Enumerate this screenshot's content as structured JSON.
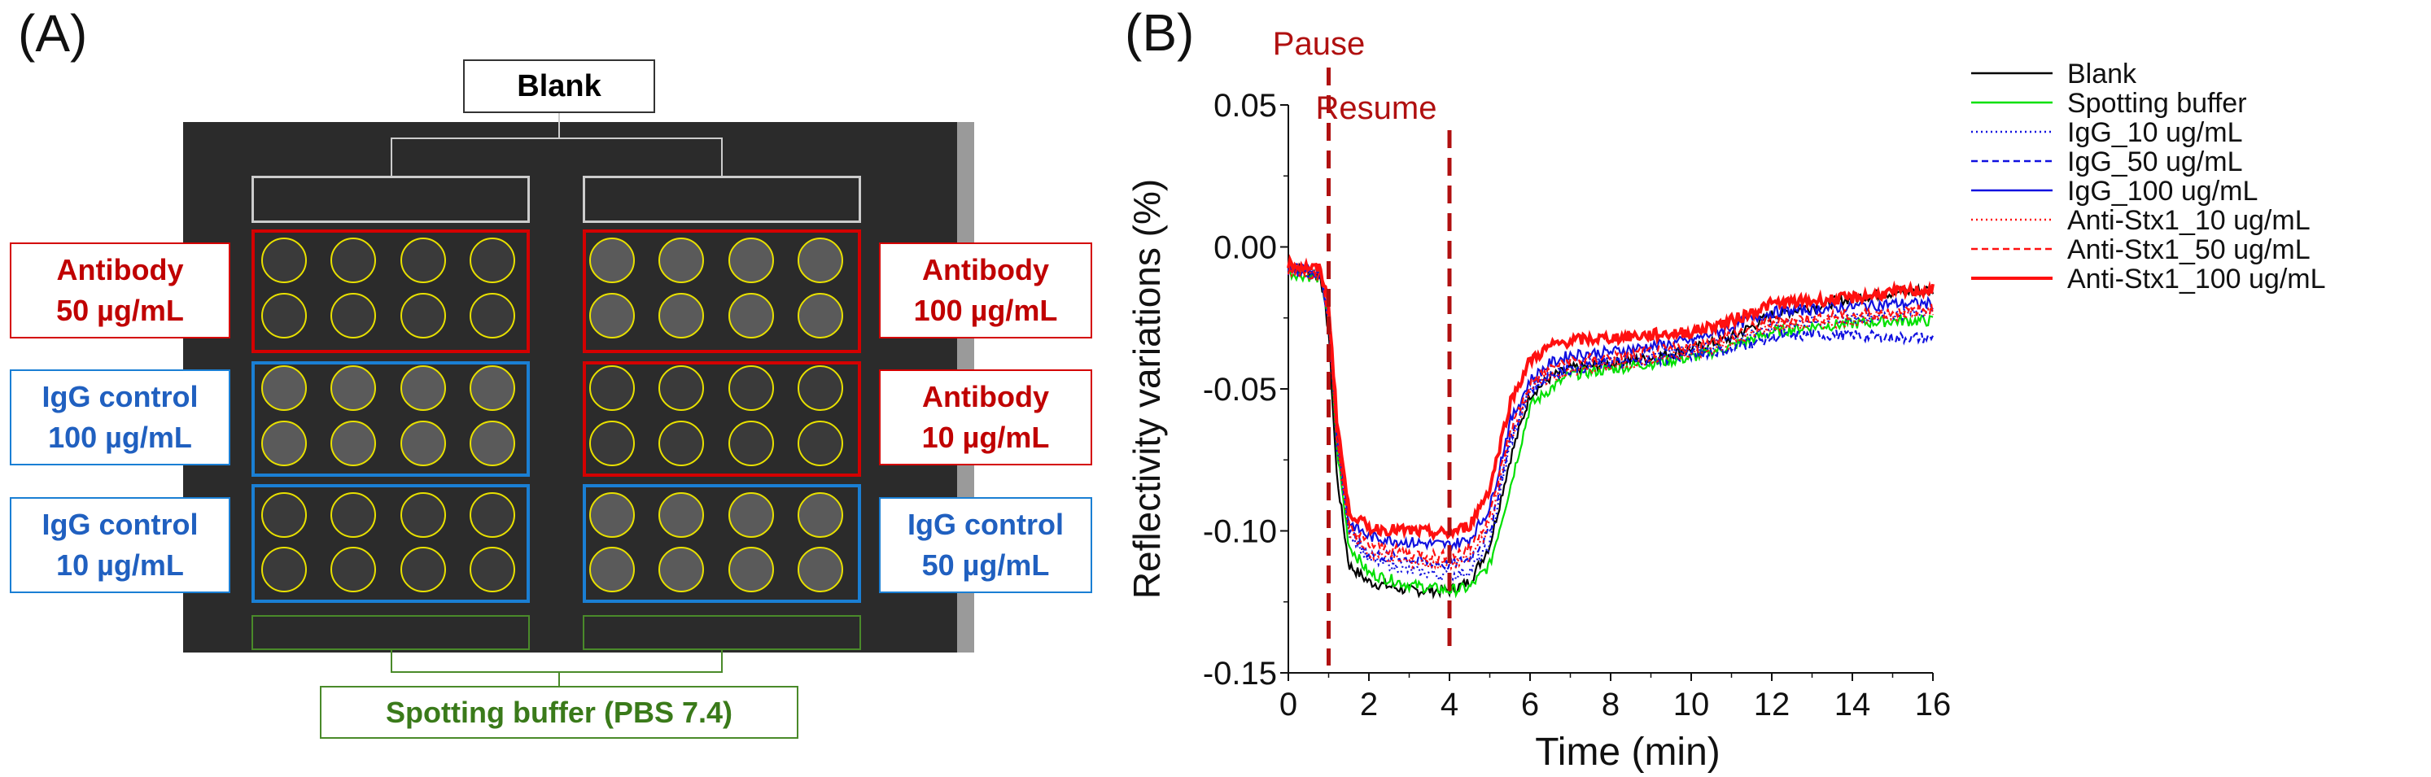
{
  "panel_a": {
    "label": "(A)",
    "blank_label": "Blank",
    "spotting_label": "Spotting buffer (PBS 7.4)",
    "groups": [
      {
        "side": "left",
        "row": 0,
        "line1": "Antibody",
        "line2": "50 µg/mL",
        "color": "red"
      },
      {
        "side": "left",
        "row": 1,
        "line1": "IgG control",
        "line2": "100 µg/mL",
        "color": "blue"
      },
      {
        "side": "left",
        "row": 2,
        "line1": "IgG control",
        "line2": "10 µg/mL",
        "color": "blue"
      },
      {
        "side": "right",
        "row": 0,
        "line1": "Antibody",
        "line2": "100 µg/mL",
        "color": "red"
      },
      {
        "side": "right",
        "row": 1,
        "line1": "Antibody",
        "line2": "10 µg/mL",
        "color": "red"
      },
      {
        "side": "right",
        "row": 2,
        "line1": "IgG control",
        "line2": "50 µg/mL",
        "color": "blue"
      }
    ]
  },
  "panel_b": {
    "label": "(B)"
  },
  "chart_data": {
    "type": "line",
    "xlabel": "Time (min)",
    "ylabel": "Reflectivity variations (%)",
    "xlim": [
      0,
      16
    ],
    "ylim": [
      -0.15,
      0.05
    ],
    "xticks": [
      "0",
      "2",
      "4",
      "6",
      "8",
      "10",
      "12",
      "14",
      "16"
    ],
    "yticks": [
      "0.05",
      "0.00",
      "-0.05",
      "-0.10",
      "-0.15"
    ],
    "annotations": [
      {
        "text": "Pause",
        "x": 1,
        "color": "#b01010"
      },
      {
        "text": "Resume",
        "x": 4,
        "color": "#b01010"
      }
    ],
    "legend_position": "right",
    "x": [
      0,
      0.8,
      1.0,
      1.2,
      1.5,
      2,
      3,
      4,
      4.5,
      5,
      5.5,
      6,
      6.5,
      7,
      8,
      9,
      10,
      11,
      12,
      13,
      14,
      15,
      16
    ],
    "series": [
      {
        "name": "Blank",
        "color": "#000000",
        "style": "solid",
        "values": [
          -0.007,
          -0.01,
          -0.03,
          -0.08,
          -0.112,
          -0.118,
          -0.121,
          -0.121,
          -0.118,
          -0.105,
          -0.075,
          -0.052,
          -0.046,
          -0.043,
          -0.041,
          -0.039,
          -0.036,
          -0.032,
          -0.024,
          -0.021,
          -0.018,
          -0.016,
          -0.015
        ]
      },
      {
        "name": "Spotting buffer",
        "color": "#00e000",
        "style": "solid",
        "values": [
          -0.009,
          -0.011,
          -0.025,
          -0.07,
          -0.105,
          -0.115,
          -0.119,
          -0.121,
          -0.12,
          -0.112,
          -0.085,
          -0.056,
          -0.05,
          -0.045,
          -0.043,
          -0.041,
          -0.039,
          -0.035,
          -0.03,
          -0.028,
          -0.027,
          -0.026,
          -0.026
        ]
      },
      {
        "name": "IgG_10 ug/mL",
        "color": "#1010e0",
        "style": "dotted",
        "values": [
          -0.008,
          -0.01,
          -0.025,
          -0.07,
          -0.1,
          -0.11,
          -0.114,
          -0.116,
          -0.114,
          -0.105,
          -0.07,
          -0.05,
          -0.045,
          -0.042,
          -0.04,
          -0.038,
          -0.036,
          -0.033,
          -0.028,
          -0.026,
          -0.025,
          -0.024,
          -0.022
        ]
      },
      {
        "name": "IgG_50 ug/mL",
        "color": "#1010e0",
        "style": "dashed",
        "values": [
          -0.008,
          -0.01,
          -0.025,
          -0.065,
          -0.1,
          -0.108,
          -0.11,
          -0.112,
          -0.11,
          -0.1,
          -0.068,
          -0.05,
          -0.045,
          -0.043,
          -0.041,
          -0.04,
          -0.038,
          -0.036,
          -0.032,
          -0.031,
          -0.031,
          -0.032,
          -0.032
        ]
      },
      {
        "name": "IgG_100 ug/mL",
        "color": "#1010e0",
        "style": "solid",
        "values": [
          -0.007,
          -0.009,
          -0.025,
          -0.065,
          -0.097,
          -0.102,
          -0.104,
          -0.105,
          -0.103,
          -0.092,
          -0.062,
          -0.047,
          -0.041,
          -0.038,
          -0.037,
          -0.035,
          -0.033,
          -0.028,
          -0.023,
          -0.022,
          -0.021,
          -0.02,
          -0.02
        ]
      },
      {
        "name": "Anti-Stx1_10 ug/mL",
        "color": "#ff1010",
        "style": "dotted",
        "values": [
          -0.008,
          -0.01,
          -0.025,
          -0.068,
          -0.1,
          -0.108,
          -0.111,
          -0.112,
          -0.11,
          -0.098,
          -0.068,
          -0.05,
          -0.046,
          -0.044,
          -0.042,
          -0.04,
          -0.038,
          -0.034,
          -0.028,
          -0.027,
          -0.026,
          -0.024,
          -0.023
        ]
      },
      {
        "name": "Anti-Stx1_50 ug/mL",
        "color": "#ff1010",
        "style": "dashed",
        "values": [
          -0.008,
          -0.01,
          -0.025,
          -0.066,
          -0.098,
          -0.105,
          -0.108,
          -0.109,
          -0.106,
          -0.095,
          -0.065,
          -0.048,
          -0.043,
          -0.04,
          -0.039,
          -0.037,
          -0.035,
          -0.031,
          -0.026,
          -0.025,
          -0.024,
          -0.023,
          -0.022
        ]
      },
      {
        "name": "Anti-Stx1_100 ug/mL",
        "color": "#ff1010",
        "style": "thick",
        "values": [
          -0.006,
          -0.008,
          -0.02,
          -0.06,
          -0.093,
          -0.099,
          -0.1,
          -0.101,
          -0.098,
          -0.085,
          -0.055,
          -0.04,
          -0.035,
          -0.033,
          -0.032,
          -0.031,
          -0.03,
          -0.026,
          -0.02,
          -0.019,
          -0.018,
          -0.016,
          -0.015
        ]
      }
    ]
  }
}
